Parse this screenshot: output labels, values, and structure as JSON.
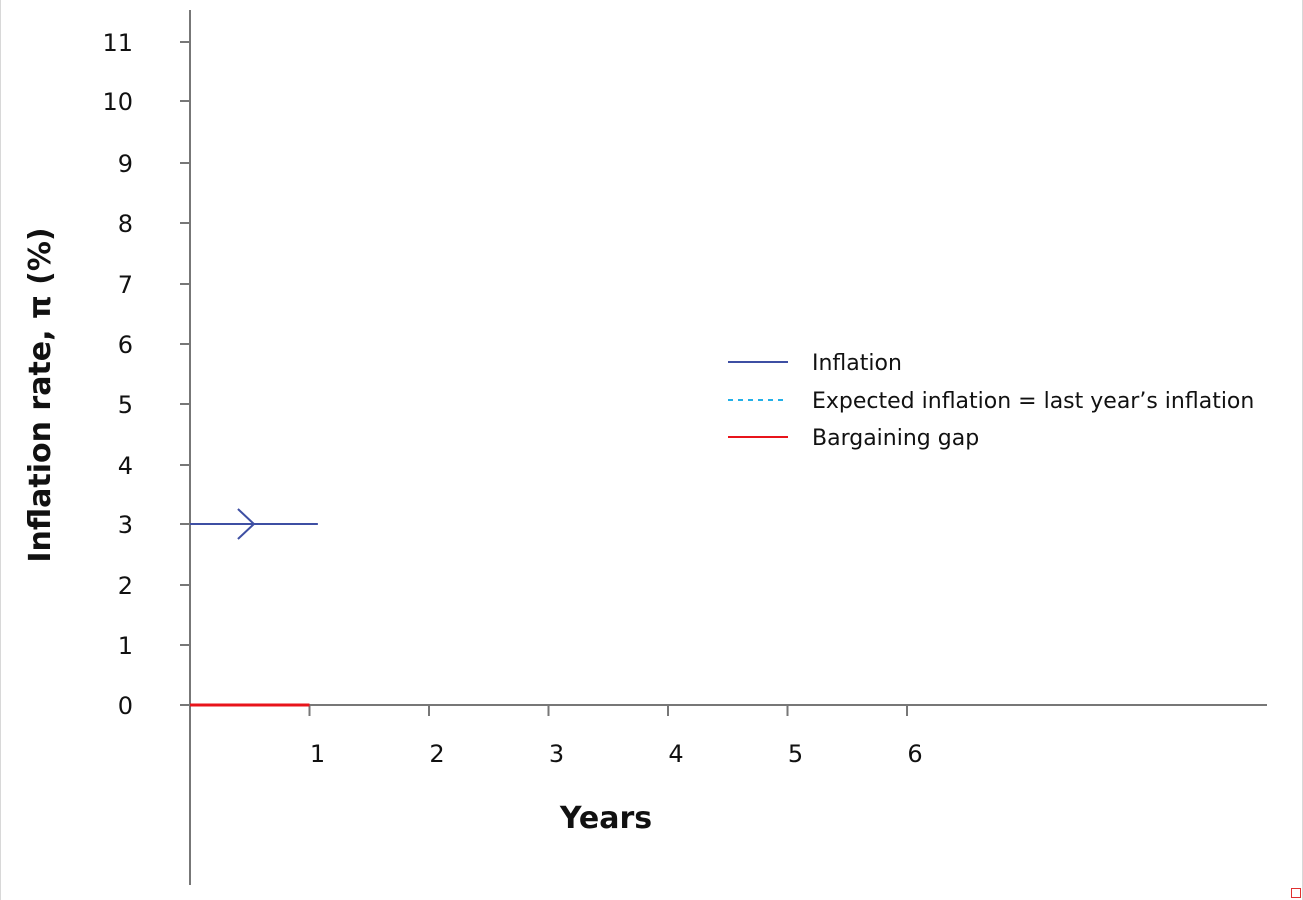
{
  "chart_data": {
    "type": "line",
    "xlabel": "Years",
    "ylabel": "Inflation rate, π (%)",
    "x_ticks": [
      "1",
      "2",
      "3",
      "4",
      "5",
      "6"
    ],
    "y_ticks": [
      "0",
      "1",
      "2",
      "3",
      "4",
      "5",
      "6",
      "7",
      "8",
      "9",
      "10",
      "11"
    ],
    "xlim": [
      0,
      9
    ],
    "ylim": [
      0,
      11
    ],
    "grid": false,
    "legend_position": "right",
    "series": [
      {
        "name": "Inflation",
        "style": "solid",
        "color": "#3e4fa3",
        "arrow": "right",
        "points": [
          [
            0,
            3
          ],
          [
            1.07,
            3
          ]
        ]
      },
      {
        "name": "Expected inflation = last year’s inflation",
        "style": "dashed",
        "color": "#22b0e8",
        "points": []
      },
      {
        "name": "Bargaining gap",
        "style": "solid",
        "color": "#e8141b",
        "points": [
          [
            0,
            0
          ],
          [
            1,
            0
          ]
        ]
      }
    ]
  }
}
